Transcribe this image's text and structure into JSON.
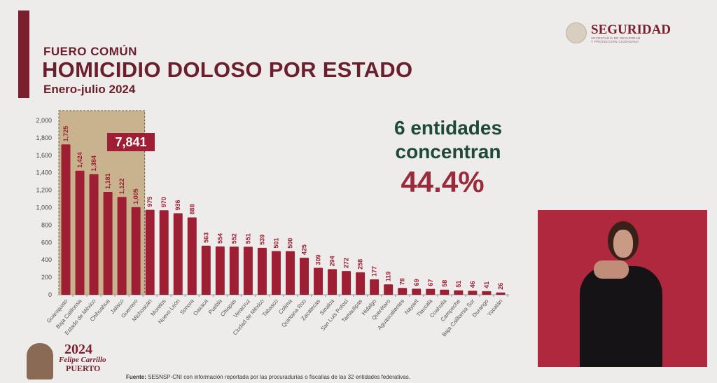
{
  "header": {
    "kicker": "FUERO COMÚN",
    "title": "HOMICIDIO DOLOSO POR ESTADO",
    "period": "Enero-julio 2024"
  },
  "logo": {
    "title": "SEGURIDAD",
    "subtitle_1": "SECRETARÍA DE SEGURIDAD",
    "subtitle_2": "Y PROTECCIÓN CIUDADANA"
  },
  "kpi": {
    "line1": "6 entidades",
    "line2": "concentran",
    "percent": "44.4%"
  },
  "footer": {
    "label": "Fuente:",
    "text": " SESNSP-CNI con información reportada por las procuradurías o fiscalías de las 32 entidades federativas."
  },
  "commemorative_logo": {
    "year": "2024",
    "name": "Felipe Carrillo",
    "surname": "PUERTO"
  },
  "colors": {
    "bar": "#9e1f33",
    "highlight": "#c9b38f",
    "title": "#6b1e2b",
    "kpi": "#1e4a3a"
  },
  "chart_data": {
    "type": "bar",
    "title": "HOMICIDIO DOLOSO POR ESTADO",
    "xlabel": "",
    "ylabel": "",
    "ylim": [
      0,
      2000
    ],
    "yticks": [
      0,
      200,
      400,
      600,
      800,
      1000,
      1200,
      1400,
      1600,
      1800,
      2000
    ],
    "grid": false,
    "categories": [
      "Guanajuato",
      "Baja California",
      "Estado de México",
      "Chihuahua",
      "Jalisco",
      "Guerrero",
      "Michoacán",
      "Morelos",
      "Nuevo León",
      "Sonora",
      "Oaxaca",
      "Puebla",
      "Chiapas",
      "Veracruz",
      "Ciudad de México",
      "Tabasco",
      "Colima",
      "Quintana Roo",
      "Zacatecas",
      "Sinaloa",
      "San Luis Potosí",
      "Tamaulipas",
      "Hidalgo",
      "Querétaro",
      "Aguascalientes",
      "Nayarit",
      "Tlaxcala",
      "Coahuila",
      "Campeche",
      "Baja California Sur",
      "Durango",
      "Yucatán"
    ],
    "values": [
      1725,
      1424,
      1384,
      1181,
      1122,
      1005,
      975,
      970,
      936,
      888,
      563,
      554,
      552,
      551,
      539,
      501,
      500,
      425,
      309,
      294,
      272,
      258,
      177,
      119,
      78,
      69,
      67,
      58,
      51,
      46,
      41,
      26
    ],
    "value_labels": [
      "1,725",
      "1,424",
      "1,384",
      "1,181",
      "1,122",
      "1,005",
      "975",
      "970",
      "936",
      "888",
      "563",
      "554",
      "552",
      "551",
      "539",
      "501",
      "500",
      "425",
      "309",
      "294",
      "272",
      "258",
      "177",
      "119",
      "78",
      "69",
      "67",
      "58",
      "51",
      "46",
      "41",
      "26"
    ],
    "highlight": {
      "count": 6,
      "total_label": "7,841"
    }
  }
}
